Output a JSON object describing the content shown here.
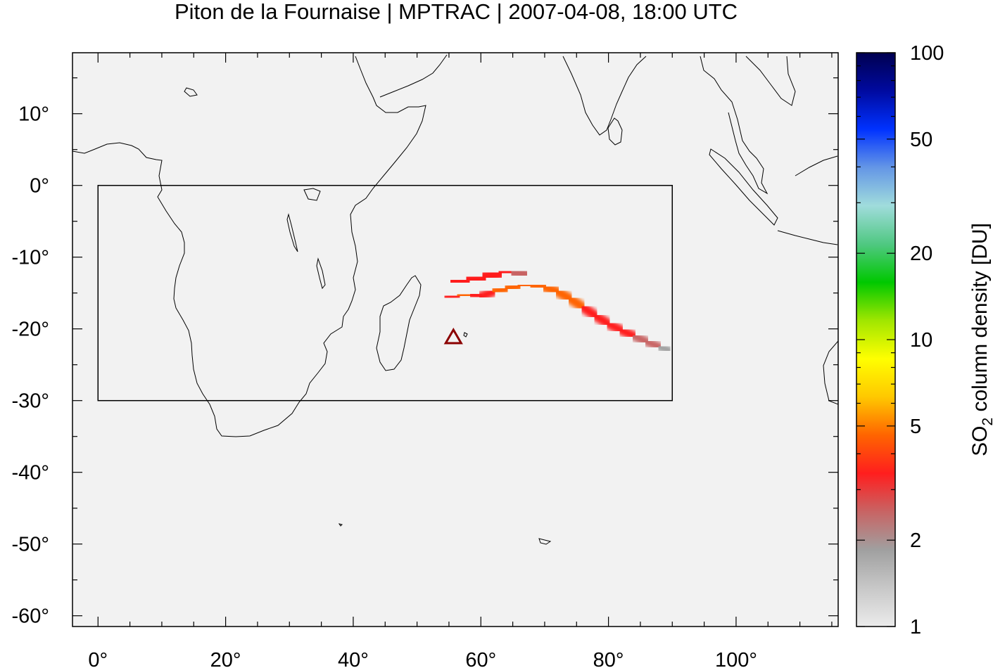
{
  "title": "Piton de la Fournaise | MPTRAC | 2007-04-08, 18:00 UTC",
  "map": {
    "projection": "plate-carree",
    "lon_range": [
      -4,
      116
    ],
    "lat_range": [
      -61.5,
      18.5
    ],
    "x_ticks": [
      {
        "value": 0,
        "label": "0°"
      },
      {
        "value": 20,
        "label": "20°"
      },
      {
        "value": 40,
        "label": "40°"
      },
      {
        "value": 60,
        "label": "60°"
      },
      {
        "value": 80,
        "label": "80°"
      },
      {
        "value": 100,
        "label": "100°"
      }
    ],
    "y_ticks": [
      {
        "value": 10,
        "label": "10°"
      },
      {
        "value": 0,
        "label": "0°"
      },
      {
        "value": -10,
        "label": "-10°"
      },
      {
        "value": -20,
        "label": "-20°"
      },
      {
        "value": -30,
        "label": "-30°"
      },
      {
        "value": -40,
        "label": "-40°"
      },
      {
        "value": -50,
        "label": "-50°"
      },
      {
        "value": -60,
        "label": "-60°"
      }
    ],
    "background_color": "#f2f2f2",
    "domain_box": {
      "lon_min": 0,
      "lon_max": 90,
      "lat_min": -30,
      "lat_max": 0
    },
    "volcano": {
      "name": "Piton de la Fournaise",
      "lon": 55.7,
      "lat": -21.2,
      "marker": "triangle-icon",
      "color": "#8b0000"
    }
  },
  "plume": {
    "units": "DU",
    "segments": [
      {
        "lon": 54.5,
        "lat": -15.6,
        "value": 3.0
      },
      {
        "lon": 56.5,
        "lat": -15.4,
        "value": 4.5
      },
      {
        "lon": 58.5,
        "lat": -15.2,
        "value": 4.0
      },
      {
        "lon": 60.0,
        "lat": -15.5,
        "value": 3.5
      },
      {
        "lon": 62.0,
        "lat": -14.8,
        "value": 4.0
      },
      {
        "lon": 64.0,
        "lat": -14.4,
        "value": 4.2
      },
      {
        "lon": 66.0,
        "lat": -14.0,
        "value": 4.5
      },
      {
        "lon": 68.0,
        "lat": -13.9,
        "value": 5.0
      },
      {
        "lon": 70.0,
        "lat": -14.2,
        "value": 4.8
      },
      {
        "lon": 72.0,
        "lat": -14.8,
        "value": 4.5
      },
      {
        "lon": 74.0,
        "lat": -15.8,
        "value": 4.2
      },
      {
        "lon": 76.0,
        "lat": -17.0,
        "value": 4.0
      },
      {
        "lon": 78.0,
        "lat": -18.2,
        "value": 3.8
      },
      {
        "lon": 80.0,
        "lat": -19.3,
        "value": 3.5
      },
      {
        "lon": 82.0,
        "lat": -20.2,
        "value": 3.3
      },
      {
        "lon": 84.0,
        "lat": -21.0,
        "value": 3.0
      },
      {
        "lon": 86.0,
        "lat": -21.8,
        "value": 2.6
      },
      {
        "lon": 88.0,
        "lat": -22.5,
        "value": 2.2
      },
      {
        "lon": 89.5,
        "lat": -23.0,
        "value": 1.8
      }
    ],
    "upper_branch": [
      {
        "lon": 55.5,
        "lat": -13.5,
        "value": 3.2
      },
      {
        "lon": 58.0,
        "lat": -13.2,
        "value": 3.6
      },
      {
        "lon": 60.5,
        "lat": -12.8,
        "value": 3.8
      },
      {
        "lon": 63.0,
        "lat": -12.2,
        "value": 3.6
      },
      {
        "lon": 65.0,
        "lat": -12.0,
        "value": 3.2
      },
      {
        "lon": 67.0,
        "lat": -12.5,
        "value": 2.6
      }
    ]
  },
  "colorbar": {
    "label": "SO",
    "label_sub": "2",
    "label_rest": " column density [DU]",
    "scale": "log",
    "range": [
      1,
      100
    ],
    "ticks": [
      {
        "value": 100,
        "label": "100"
      },
      {
        "value": 50,
        "label": "50"
      },
      {
        "value": 20,
        "label": "20"
      },
      {
        "value": 10,
        "label": "10"
      },
      {
        "value": 5,
        "label": "5"
      },
      {
        "value": 2,
        "label": "2"
      },
      {
        "value": 1,
        "label": "1"
      }
    ],
    "colors": [
      "#ebebeb",
      "#c8c8c8",
      "#a0a0a0",
      "#c86464",
      "#ff1e1e",
      "#ff6400",
      "#ffc800",
      "#ffff00",
      "#a0e600",
      "#00c800",
      "#50c882",
      "#a0dcdc",
      "#6496e6",
      "#0032ff",
      "#000aa0",
      "#000050"
    ]
  }
}
